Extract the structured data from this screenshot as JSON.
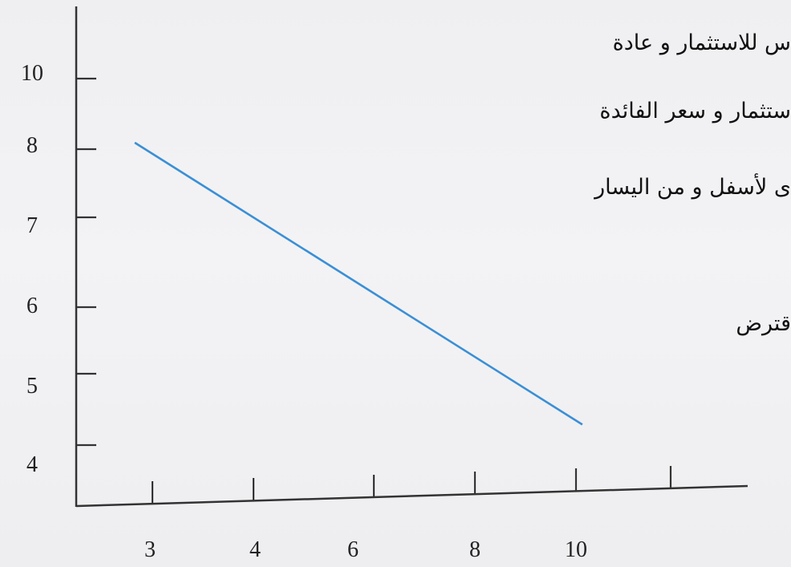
{
  "overlay_text": [
    "س للاستثمار و عادة",
    "ستثمار و سعر الفائدة",
    "ى لأسفل و من اليسار",
    "قترض"
  ],
  "chart_data": {
    "type": "line",
    "title": "",
    "xlabel": "",
    "ylabel": "",
    "x_ticks": [
      "3",
      "4",
      "6",
      "8",
      "10"
    ],
    "y_ticks": [
      "10",
      "8",
      "7",
      "6",
      "5",
      "4"
    ],
    "series": [
      {
        "points": [
          [
            3,
            8.35
          ],
          [
            10,
            4.4
          ]
        ],
        "color": "#3a8fd6"
      }
    ],
    "grid": false
  }
}
